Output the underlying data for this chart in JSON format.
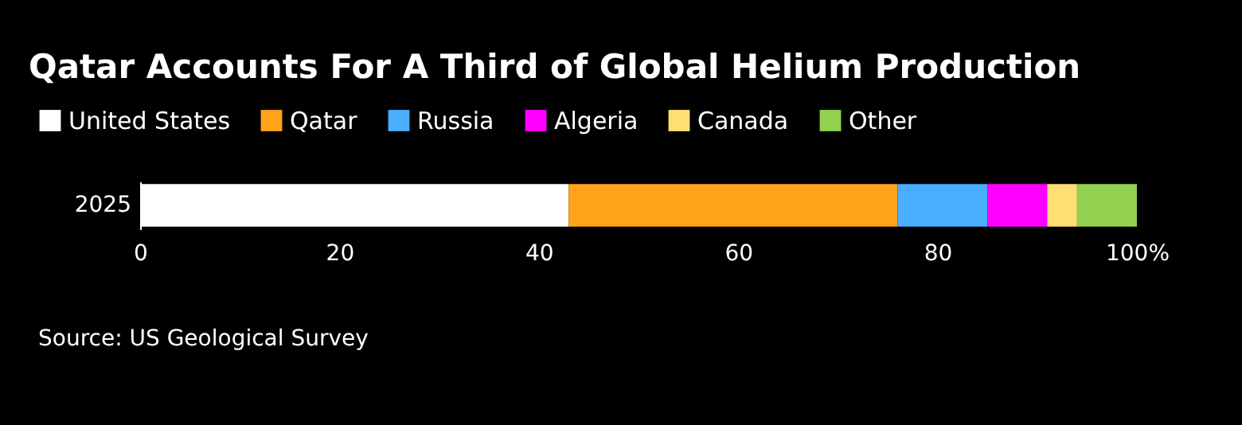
{
  "chart_data": {
    "type": "bar",
    "orientation": "horizontal",
    "stacked": true,
    "title": "Qatar Accounts For A Third of Global Helium Production",
    "categories": [
      "2025"
    ],
    "series": [
      {
        "name": "United States",
        "color": "#ffffff",
        "values": [
          43
        ]
      },
      {
        "name": "Qatar",
        "color": "#ffa31a",
        "values": [
          33
        ]
      },
      {
        "name": "Russia",
        "color": "#4aaeff",
        "values": [
          9
        ]
      },
      {
        "name": "Algeria",
        "color": "#ff00ff",
        "values": [
          6
        ]
      },
      {
        "name": "Canada",
        "color": "#ffdf73",
        "values": [
          3
        ]
      },
      {
        "name": "Other",
        "color": "#92d050",
        "values": [
          6
        ]
      }
    ],
    "xlim": [
      0,
      100
    ],
    "xticks": [
      0,
      20,
      40,
      60,
      80,
      {
        "value": 100,
        "label": "100%"
      }
    ],
    "legend": "top left",
    "annotations": [
      "Source: US Geological Survey"
    ]
  }
}
